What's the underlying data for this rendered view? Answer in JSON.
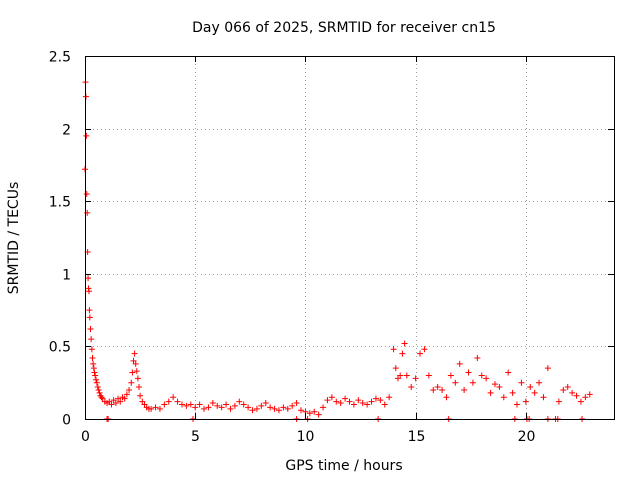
{
  "chart_data": {
    "type": "scatter",
    "title": "Day 066 of 2025, SRMTID for receiver cn15",
    "xlabel": "GPS time / hours",
    "ylabel": "SRMTID / TECUs",
    "xlim": [
      0,
      24
    ],
    "ylim": [
      0,
      2.5
    ],
    "x_ticks": [
      0,
      5,
      10,
      15,
      20
    ],
    "x_tick_labels": [
      "0",
      "5",
      "10",
      "15",
      "20"
    ],
    "y_ticks": [
      0,
      0.5,
      1,
      1.5,
      2,
      2.5
    ],
    "y_tick_labels": [
      "0",
      "0.5",
      "1",
      "1.5",
      "2",
      "2.5"
    ],
    "grid": true,
    "marker": "plus",
    "color": "#ff0000",
    "series": [
      {
        "name": "SRMTID",
        "x": [
          0.0,
          0.02,
          0.04,
          0.06,
          0.08,
          0.1,
          0.12,
          0.14,
          0.16,
          0.18,
          0.2,
          0.22,
          0.25,
          0.28,
          0.31,
          0.34,
          0.37,
          0.4,
          0.43,
          0.46,
          0.5,
          0.54,
          0.58,
          0.62,
          0.66,
          0.7,
          0.75,
          0.8,
          0.9,
          1.0,
          1.1,
          1.2,
          1.3,
          1.4,
          1.5,
          1.6,
          1.7,
          1.8,
          1.9,
          2.0,
          2.1,
          2.15,
          2.2,
          2.25,
          2.3,
          2.35,
          2.4,
          2.45,
          2.5,
          2.6,
          2.7,
          2.8,
          2.9,
          3.0,
          3.2,
          3.4,
          3.6,
          3.8,
          4.0,
          4.2,
          4.4,
          4.6,
          4.8,
          5.0,
          5.2,
          5.4,
          5.6,
          5.8,
          6.0,
          6.2,
          6.4,
          6.6,
          6.8,
          7.0,
          7.2,
          7.4,
          7.6,
          7.8,
          8.0,
          8.2,
          8.4,
          8.6,
          8.8,
          9.0,
          9.2,
          9.4,
          9.6,
          9.8,
          10.0,
          10.2,
          10.4,
          10.6,
          10.8,
          11.0,
          11.2,
          11.4,
          11.6,
          11.8,
          12.0,
          12.2,
          12.4,
          12.6,
          12.8,
          13.0,
          13.2,
          13.4,
          13.6,
          13.8,
          14.0,
          14.1,
          14.2,
          14.3,
          14.4,
          14.5,
          14.6,
          14.8,
          15.0,
          15.2,
          15.4,
          15.6,
          15.8,
          16.0,
          16.2,
          16.4,
          16.6,
          16.8,
          17.0,
          17.2,
          17.4,
          17.6,
          17.8,
          18.0,
          18.2,
          18.4,
          18.6,
          18.8,
          19.0,
          19.2,
          19.4,
          19.6,
          19.8,
          20.0,
          20.2,
          20.4,
          20.6,
          20.8,
          21.0,
          21.5,
          21.7,
          21.9,
          22.1,
          22.3,
          22.5,
          22.7,
          22.9,
          1.0,
          1.05,
          4.9,
          9.6,
          10.1,
          13.3,
          16.5,
          19.5,
          20.05,
          20.15,
          21.0,
          21.35,
          21.45,
          22.55
        ],
        "y": [
          1.72,
          2.32,
          2.22,
          1.95,
          1.55,
          1.42,
          1.15,
          0.97,
          0.9,
          0.88,
          0.75,
          0.7,
          0.62,
          0.55,
          0.48,
          0.42,
          0.38,
          0.35,
          0.32,
          0.3,
          0.27,
          0.25,
          0.22,
          0.2,
          0.18,
          0.16,
          0.15,
          0.14,
          0.12,
          0.11,
          0.12,
          0.1,
          0.13,
          0.11,
          0.14,
          0.12,
          0.15,
          0.14,
          0.17,
          0.2,
          0.25,
          0.32,
          0.4,
          0.45,
          0.38,
          0.33,
          0.28,
          0.22,
          0.16,
          0.12,
          0.1,
          0.08,
          0.07,
          0.07,
          0.08,
          0.07,
          0.1,
          0.12,
          0.15,
          0.12,
          0.1,
          0.09,
          0.1,
          0.08,
          0.1,
          0.07,
          0.08,
          0.11,
          0.09,
          0.08,
          0.1,
          0.07,
          0.09,
          0.12,
          0.1,
          0.08,
          0.06,
          0.07,
          0.09,
          0.11,
          0.08,
          0.07,
          0.06,
          0.08,
          0.07,
          0.09,
          0.11,
          0.06,
          0.05,
          0.04,
          0.05,
          0.03,
          0.08,
          0.13,
          0.15,
          0.12,
          0.11,
          0.14,
          0.12,
          0.1,
          0.13,
          0.11,
          0.1,
          0.12,
          0.14,
          0.13,
          0.1,
          0.15,
          0.48,
          0.35,
          0.28,
          0.3,
          0.45,
          0.52,
          0.3,
          0.22,
          0.28,
          0.45,
          0.48,
          0.3,
          0.2,
          0.22,
          0.2,
          0.15,
          0.3,
          0.25,
          0.38,
          0.2,
          0.32,
          0.25,
          0.42,
          0.3,
          0.28,
          0.18,
          0.24,
          0.22,
          0.15,
          0.32,
          0.18,
          0.1,
          0.25,
          0.12,
          0.22,
          0.18,
          0.25,
          0.15,
          0.35,
          0.12,
          0.2,
          0.22,
          0.18,
          0.16,
          0.12,
          0.15,
          0.17,
          0.0,
          0.0,
          0.0,
          0.0,
          0.0,
          0.0,
          0.0,
          0.0,
          0.0,
          0.0,
          0.0,
          0.0,
          0.0,
          0.0
        ]
      }
    ]
  }
}
